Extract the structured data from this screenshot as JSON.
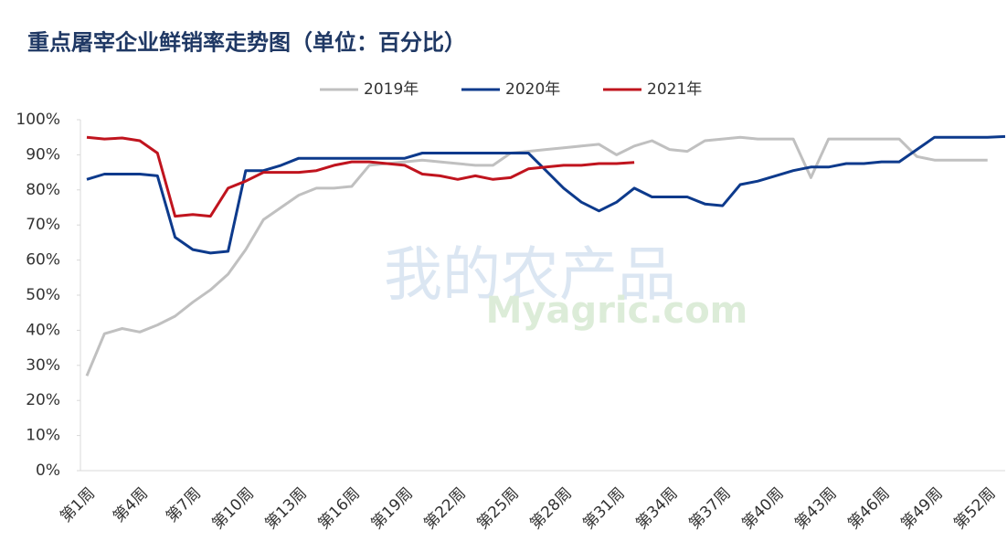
{
  "chart_data": {
    "type": "line",
    "title": "重点屠宰企业鲜销率走势图（单位：百分比）",
    "watermark": [
      "我的农产品",
      "Myagric.com"
    ],
    "categories": [
      "第1周",
      null,
      null,
      "第4周",
      null,
      null,
      "第7周",
      null,
      null,
      "第10周",
      null,
      null,
      "第13周",
      null,
      null,
      "第16周",
      null,
      null,
      "第19周",
      null,
      null,
      "第22周",
      null,
      null,
      "第25周",
      null,
      null,
      "第28周",
      null,
      null,
      "第31周",
      null,
      null,
      "第34周",
      null,
      null,
      "第37周",
      null,
      null,
      "第40周",
      null,
      null,
      "第43周",
      null,
      null,
      "第46周",
      null,
      null,
      "第49周",
      null,
      null,
      "第52周",
      null
    ],
    "series": [
      {
        "name": "2019年",
        "color": "#c0c0c0",
        "values": [
          27,
          39,
          40.5,
          39.5,
          41.5,
          44,
          48,
          51.5,
          56,
          63,
          71.5,
          75,
          78.5,
          80.5,
          80.5,
          81,
          87,
          87.5,
          88,
          88.5,
          88,
          87.5,
          87,
          87,
          90.5,
          91,
          91.5,
          92,
          92.5,
          93,
          90,
          92.5,
          94,
          91.5,
          91,
          94,
          94.5,
          95,
          94.5,
          94.5,
          94.5,
          83.5,
          94.5,
          94.5,
          94.5,
          94.5,
          94.5,
          89.5,
          88.5,
          88.5,
          88.5,
          88.5,
          null
        ]
      },
      {
        "name": "2020年",
        "color": "#0d3a8c",
        "values": [
          83,
          84.5,
          84.5,
          84.5,
          84,
          66.5,
          63,
          62,
          62.5,
          85.5,
          85.5,
          87,
          89,
          89,
          89,
          89,
          89,
          89,
          89,
          90.5,
          90.5,
          90.5,
          90.5,
          90.5,
          90.5,
          90.5,
          85.5,
          80.5,
          76.5,
          74,
          76.5,
          80.5,
          78,
          78,
          78,
          76,
          75.5,
          81.5,
          82.5,
          84,
          85.5,
          86.5,
          86.5,
          87.5,
          87.5,
          88,
          88,
          91.5,
          95,
          95,
          95,
          95,
          95.2
        ]
      },
      {
        "name": "2021年",
        "color": "#c0141e",
        "values": [
          95,
          94.5,
          94.8,
          94,
          90.5,
          72.5,
          73,
          72.5,
          80.5,
          82.5,
          85,
          85,
          85,
          85.5,
          87,
          88,
          88,
          87.5,
          87,
          84.5,
          84,
          83,
          84,
          83,
          83.5,
          86,
          86.5,
          87,
          87,
          87.5,
          87.5,
          87.8,
          null,
          null,
          null,
          null,
          null,
          null,
          null,
          null,
          null,
          null,
          null,
          null,
          null,
          null,
          null,
          null,
          null,
          null,
          null,
          null,
          null
        ]
      }
    ],
    "ylim": [
      0,
      100
    ],
    "yticks": [
      {
        "value": 0,
        "label": "0%"
      },
      {
        "value": 10,
        "label": "10%"
      },
      {
        "value": 20,
        "label": "20%"
      },
      {
        "value": 30,
        "label": "30%"
      },
      {
        "value": 40,
        "label": "40%"
      },
      {
        "value": 50,
        "label": "50%"
      },
      {
        "value": 60,
        "label": "60%"
      },
      {
        "value": 70,
        "label": "70%"
      },
      {
        "value": 80,
        "label": "80%"
      },
      {
        "value": 90,
        "label": "90%"
      },
      {
        "value": 100,
        "label": "100%"
      }
    ],
    "grid": false,
    "legend": "top"
  }
}
